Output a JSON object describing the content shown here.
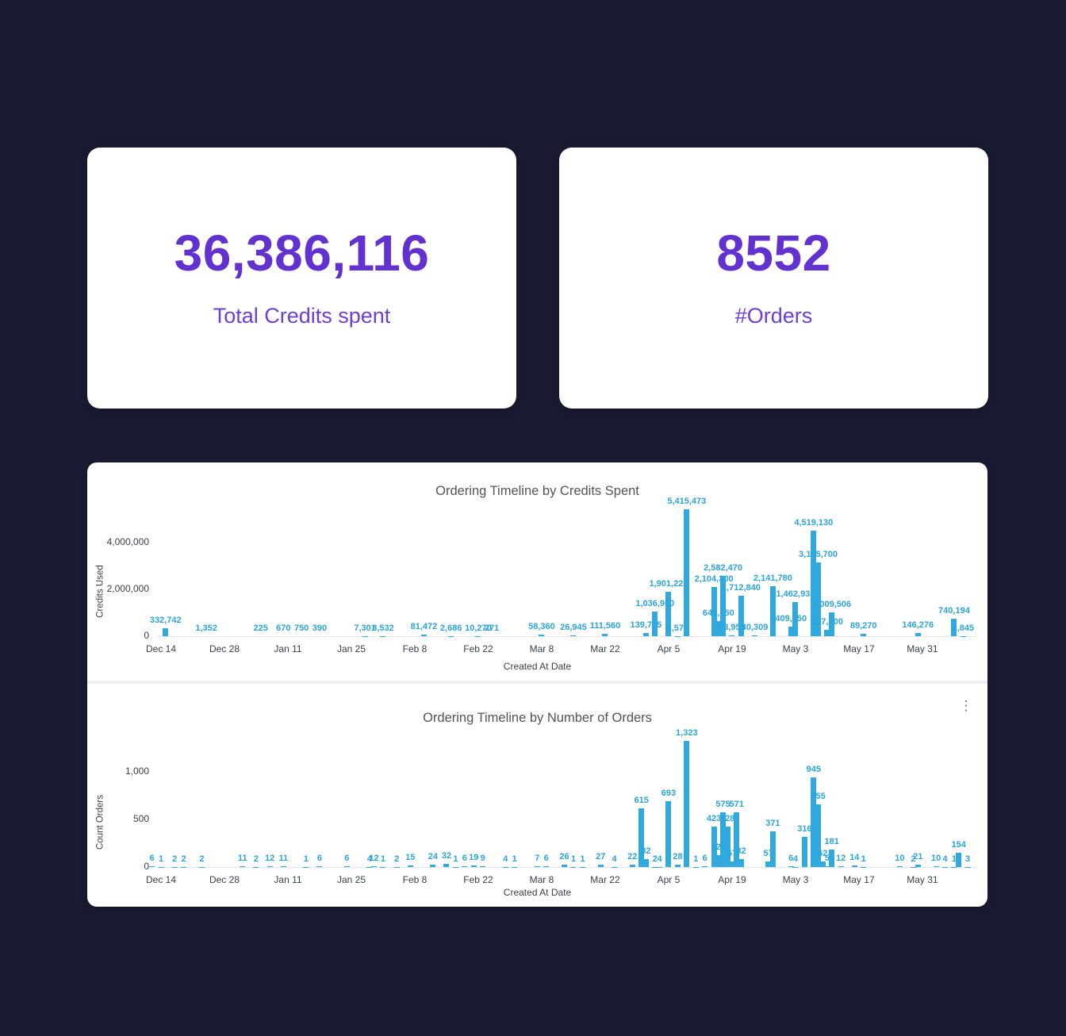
{
  "page": {
    "background": "#1A1A33",
    "card_background": "#FFFFFF"
  },
  "colors": {
    "kpi_text": "#6232D0",
    "bar": "#2FA9DE",
    "bar_label": "#2AA4D9",
    "title_text": "#545454",
    "axis_text": "#3C4043"
  },
  "icons": {
    "kebab_menu": "⋮"
  },
  "kpis": [
    {
      "value": "36,386,116",
      "label": "Total Credits spent"
    },
    {
      "value": "8552",
      "label": "#Orders"
    }
  ],
  "chart_data": [
    {
      "type": "bar",
      "title": "Ordering Timeline by Credits Spent",
      "xlabel": "Created At Date",
      "ylabel": "Credits Used",
      "x_ticks": [
        "Dec 14",
        "Dec 28",
        "Jan 11",
        "Jan 25",
        "Feb 8",
        "Feb 22",
        "Mar 8",
        "Mar 22",
        "Apr 5",
        "Apr 19",
        "May 3",
        "May 17",
        "May 31"
      ],
      "x_tick_interval_days": 14,
      "y_ticks": [
        "0",
        "2,000,000",
        "4,000,000"
      ],
      "y_tick_values": [
        0,
        2000000,
        4000000
      ],
      "ylim": [
        0,
        5700000
      ],
      "grid": false,
      "legend": "none",
      "bars": [
        [
          1,
          332742,
          "332,742"
        ],
        [
          10,
          1352,
          "1,352"
        ],
        [
          22,
          225,
          "225"
        ],
        [
          27,
          670,
          "670"
        ],
        [
          31,
          750,
          "750"
        ],
        [
          35,
          390,
          "390"
        ],
        [
          45,
          7301,
          "7,301"
        ],
        [
          49,
          8532,
          "8,532"
        ],
        [
          58,
          81472,
          "81,472"
        ],
        [
          64,
          2686,
          "2,686"
        ],
        [
          70,
          10270,
          "10,270"
        ],
        [
          73,
          271,
          "271"
        ],
        [
          84,
          58360,
          "58,360"
        ],
        [
          91,
          26945,
          "26,945"
        ],
        [
          98,
          111560,
          "111,560"
        ],
        [
          107,
          139755,
          "139,755"
        ],
        [
          109,
          1036900,
          "1,036,900"
        ],
        [
          112,
          1901220,
          "1,901,220"
        ],
        [
          114,
          6570,
          "6,570"
        ],
        [
          116,
          5415473,
          "5,415,473"
        ],
        [
          122,
          2104300,
          "2,104,300"
        ],
        [
          123,
          649850,
          "649,850"
        ],
        [
          124,
          2582470,
          "2,582,470"
        ],
        [
          126,
          23950,
          "23,950"
        ],
        [
          128,
          1712840,
          "1,712,840"
        ],
        [
          131,
          30309,
          "30,309"
        ],
        [
          135,
          2141780,
          "2,141,780"
        ],
        [
          139,
          409050,
          "409,050"
        ],
        [
          140,
          1462938,
          "1,462,938"
        ],
        [
          144,
          4519130,
          "4,519,130"
        ],
        [
          145,
          3145700,
          "3,145,700"
        ],
        [
          147,
          277200,
          "277,200"
        ],
        [
          148,
          1009506,
          "1,009,506"
        ],
        [
          155,
          89270,
          "89,270"
        ],
        [
          167,
          146276,
          "146,276"
        ],
        [
          175,
          740194,
          "740,194"
        ],
        [
          177,
          2845,
          "2,845"
        ]
      ]
    },
    {
      "type": "bar",
      "title": "Ordering Timeline by Number of Orders",
      "xlabel": "Created At Date",
      "ylabel": "Count Orders",
      "x_ticks": [
        "Dec 14",
        "Dec 28",
        "Jan 11",
        "Jan 25",
        "Feb 8",
        "Feb 22",
        "Mar 8",
        "Mar 22",
        "Apr 5",
        "Apr 19",
        "May 3",
        "May 17",
        "May 31"
      ],
      "x_tick_interval_days": 14,
      "y_ticks": [
        "0",
        "500",
        "1,000"
      ],
      "y_tick_values": [
        0,
        500,
        1000
      ],
      "ylim": [
        0,
        1400
      ],
      "grid": false,
      "legend": "none",
      "has_options_menu": true,
      "bars": [
        [
          -2,
          6,
          "6"
        ],
        [
          0,
          1,
          "1"
        ],
        [
          3,
          2,
          "2"
        ],
        [
          5,
          2,
          "2"
        ],
        [
          9,
          2,
          "2"
        ],
        [
          18,
          11,
          "11"
        ],
        [
          21,
          2,
          "2"
        ],
        [
          24,
          12,
          "12"
        ],
        [
          27,
          11,
          "11"
        ],
        [
          32,
          1,
          "1"
        ],
        [
          35,
          6,
          "6"
        ],
        [
          41,
          6,
          "6"
        ],
        [
          46,
          4,
          "4"
        ],
        [
          47,
          12,
          "12"
        ],
        [
          49,
          1,
          "1"
        ],
        [
          52,
          2,
          "2"
        ],
        [
          55,
          15,
          "15"
        ],
        [
          60,
          24,
          "24"
        ],
        [
          63,
          32,
          "32"
        ],
        [
          65,
          1,
          "1"
        ],
        [
          67,
          6,
          "6"
        ],
        [
          69,
          19,
          "19"
        ],
        [
          71,
          9,
          "9"
        ],
        [
          76,
          4,
          "4"
        ],
        [
          78,
          1,
          "1"
        ],
        [
          83,
          7,
          "7"
        ],
        [
          85,
          6,
          "6"
        ],
        [
          89,
          26,
          "26"
        ],
        [
          91,
          1,
          "1"
        ],
        [
          93,
          1,
          "1"
        ],
        [
          97,
          27,
          "27"
        ],
        [
          100,
          4,
          "4"
        ],
        [
          104,
          22,
          "22"
        ],
        [
          106,
          615,
          "615"
        ],
        [
          107,
          82,
          "82"
        ],
        [
          109,
          2,
          "2"
        ],
        [
          110,
          4,
          "4"
        ],
        [
          112,
          693,
          "693"
        ],
        [
          114,
          28,
          "28"
        ],
        [
          116,
          1323,
          "1,323"
        ],
        [
          118,
          1,
          "1"
        ],
        [
          120,
          6,
          "6"
        ],
        [
          122,
          423,
          "423"
        ],
        [
          123,
          123,
          "123"
        ],
        [
          124,
          575,
          "575"
        ],
        [
          125,
          428,
          "428"
        ],
        [
          126,
          57,
          "57"
        ],
        [
          127,
          571,
          "571"
        ],
        [
          128,
          82,
          "82"
        ],
        [
          134,
          57,
          "57"
        ],
        [
          135,
          371,
          "371"
        ],
        [
          139,
          6,
          "6"
        ],
        [
          140,
          4,
          "4"
        ],
        [
          142,
          316,
          "316"
        ],
        [
          144,
          945,
          "945"
        ],
        [
          145,
          655,
          "655"
        ],
        [
          146,
          62,
          "62"
        ],
        [
          147,
          5,
          "5"
        ],
        [
          148,
          181,
          "181"
        ],
        [
          150,
          12,
          "12"
        ],
        [
          153,
          14,
          "14"
        ],
        [
          155,
          1,
          "1"
        ],
        [
          163,
          10,
          "10"
        ],
        [
          166,
          2,
          "2"
        ],
        [
          167,
          21,
          "21"
        ],
        [
          171,
          10,
          "10"
        ],
        [
          173,
          4,
          "4"
        ],
        [
          175,
          1,
          "1"
        ],
        [
          176,
          154,
          "154"
        ],
        [
          178,
          3,
          "3"
        ]
      ]
    }
  ]
}
